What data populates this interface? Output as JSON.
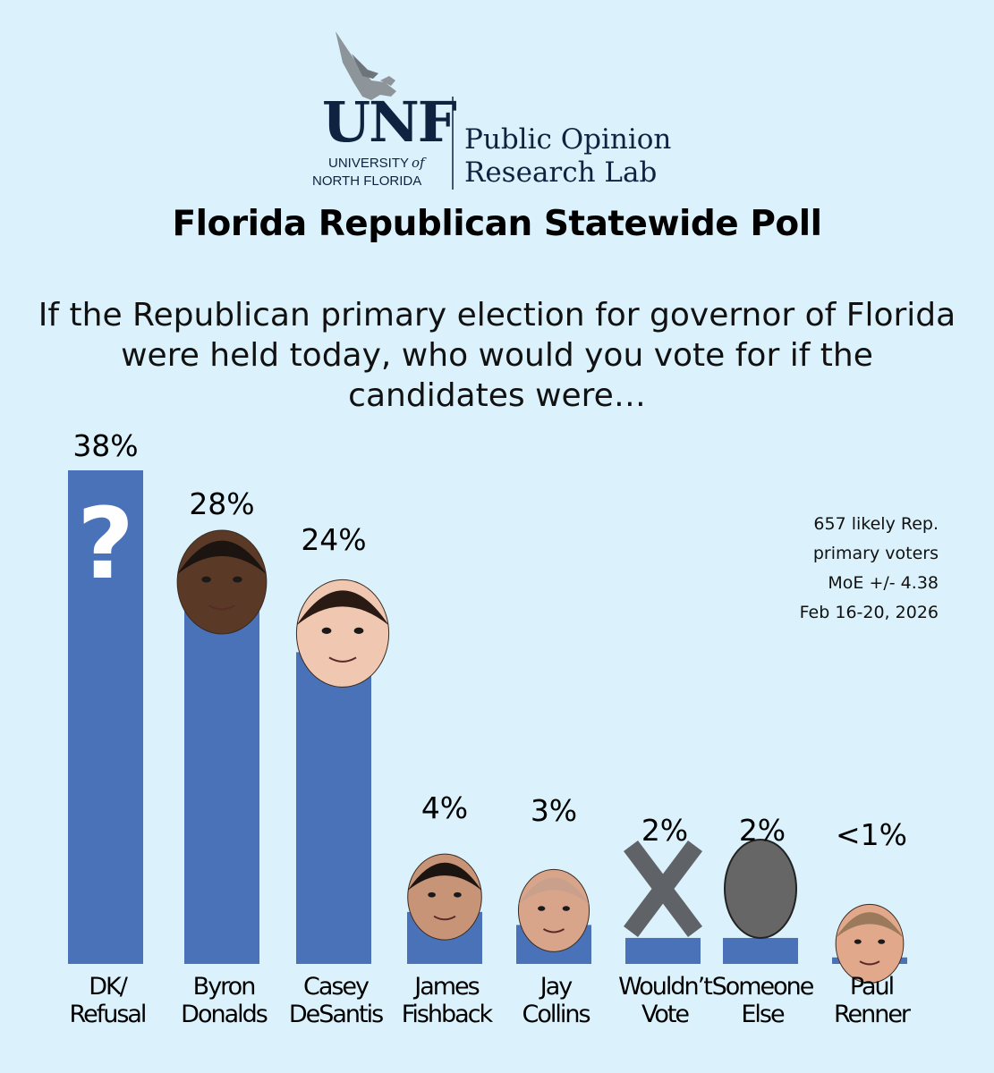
{
  "logo": {
    "abbr": "UNF",
    "university_line1": "UNIVERSITY",
    "university_of": "of",
    "university_line2": "NORTH FLORIDA",
    "lab_line1": "Public Opinion",
    "lab_line2": "Research Lab"
  },
  "title": "Florida Republican Statewide Poll",
  "question": "If the Republican primary election for governor of Florida were held today, who would you vote for if the candidates were…",
  "notes": {
    "sample_line1": "657 likely Rep.",
    "sample_line2": "primary voters",
    "moe": "MoE +/- 4.38",
    "dates": "Feb 16-20, 2026"
  },
  "colors": {
    "bar": "#4a72b8",
    "background": "#dbf2fc",
    "text": "#000000",
    "navy": "#0d2340"
  },
  "chart_data": {
    "type": "bar",
    "title": "Florida Republican Statewide Poll",
    "categories": [
      "DK/ Refusal",
      "Byron Donalds",
      "Casey DeSantis",
      "James Fishback",
      "Jay Collins",
      "Wouldn't Vote",
      "Someone Else",
      "Paul Renner"
    ],
    "category_lines": [
      [
        "DK/",
        "Refusal"
      ],
      [
        "Byron",
        "Donalds"
      ],
      [
        "Casey",
        "DeSantis"
      ],
      [
        "James",
        "Fishback"
      ],
      [
        "Jay",
        "Collins"
      ],
      [
        "Wouldn’t",
        "Vote"
      ],
      [
        "Someone",
        "Else"
      ],
      [
        "Paul",
        "Renner"
      ]
    ],
    "values": [
      38,
      28,
      24,
      4,
      3,
      2,
      2,
      0.5
    ],
    "labels": [
      "38%",
      "28%",
      "24%",
      "4%",
      "3%",
      "2%",
      "2%",
      "<1%"
    ],
    "icons": [
      "question-mark-icon",
      "face-icon",
      "face-icon",
      "face-icon",
      "face-icon",
      "x-mark-icon",
      "silhouette-head-icon",
      "face-icon"
    ],
    "ylim": [
      0,
      38
    ],
    "grid": false,
    "xlabel": "",
    "ylabel": ""
  }
}
